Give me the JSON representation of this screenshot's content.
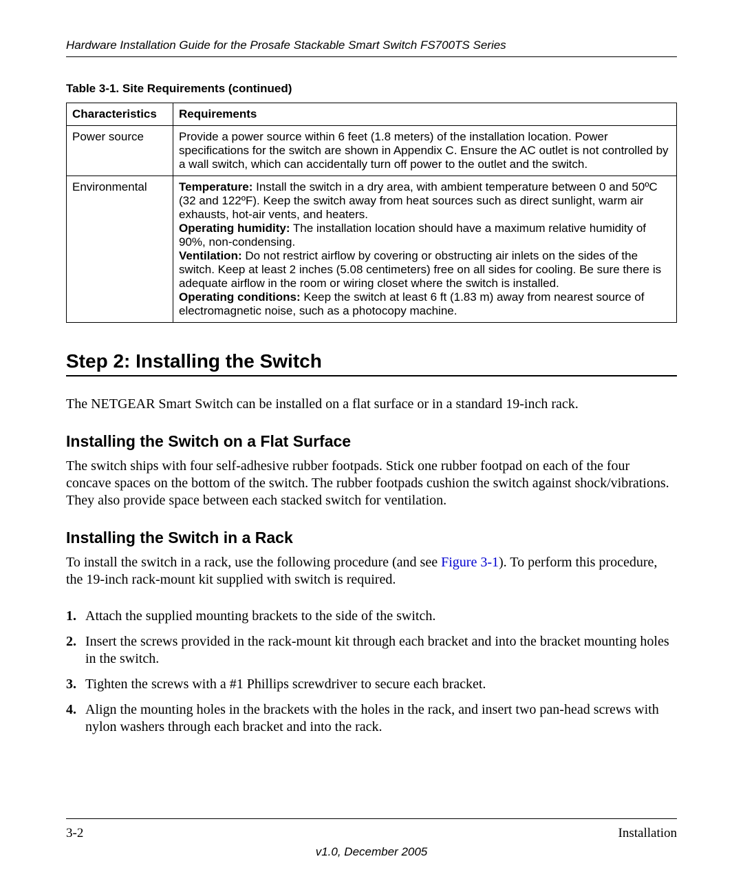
{
  "header": {
    "running_head": "Hardware Installation Guide for the Prosafe Stackable Smart Switch FS700TS Series"
  },
  "table": {
    "caption": "Table 3-1. Site Requirements (continued)",
    "columns": [
      "Characteristics",
      "Requirements"
    ],
    "rows": [
      {
        "c0": "Power source",
        "c1": "Provide a power source within 6 feet (1.8 meters) of the installation location. Power specifications for the switch are shown in Appendix C. Ensure the AC outlet is not controlled by a wall switch, which can accidentally turn off power to the outlet and the switch."
      },
      {
        "c0": "Environmental",
        "env": {
          "temp_label": "Temperature:",
          "temp_text": " Install the switch in a dry area, with ambient temperature between 0 and 50ºC (32 and 122ºF). Keep the switch away from heat sources such as direct sunlight, warm air exhausts, hot-air vents, and heaters.",
          "hum_label": "Operating humidity:",
          "hum_text": " The installation location should have a maximum relative humidity of 90%, non-condensing.",
          "vent_label": "Ventilation:",
          "vent_text": " Do not restrict airflow by covering or obstructing air inlets on the sides of the switch. Keep at least 2 inches (5.08 centimeters) free on all sides for cooling. Be sure there is adequate airflow in the room or wiring closet where the switch is installed.",
          "cond_label": "Operating conditions:",
          "cond_text": " Keep the switch at least 6 ft (1.83 m) away from nearest source of electromagnetic noise, such as a photocopy machine."
        }
      }
    ]
  },
  "sections": {
    "h1": "Step 2: Installing the Switch",
    "p1": "The NETGEAR Smart Switch can be installed on a flat surface or in a standard 19-inch rack.",
    "h2a": "Installing the Switch on a Flat Surface",
    "p2": "The switch ships with four self-adhesive rubber footpads. Stick one rubber footpad on each of the four concave spaces on the bottom of the switch. The rubber footpads cushion the switch against shock/vibrations. They also provide space between each stacked switch for ventilation.",
    "h2b": "Installing the Switch in a Rack",
    "p3a": "To install the switch in a rack, use the following procedure (and see ",
    "p3_xref": "Figure 3-1",
    "p3b": "). To perform this procedure, the 19-inch rack-mount kit supplied with switch is required.",
    "steps": [
      "Attach the supplied mounting brackets to the side of the switch.",
      "Insert the screws provided in the rack-mount kit through each bracket and into the bracket mounting holes in the switch.",
      "Tighten the screws with a #1 Phillips screwdriver to secure each bracket.",
      "Align the mounting holes in the brackets with the holes in the rack, and insert two pan-head screws with nylon washers through each bracket and into the rack."
    ],
    "step_nums": [
      "1.",
      "2.",
      "3.",
      "4."
    ]
  },
  "footer": {
    "page_num": "3-2",
    "section": "Installation",
    "version": "v1.0, December 2005"
  }
}
